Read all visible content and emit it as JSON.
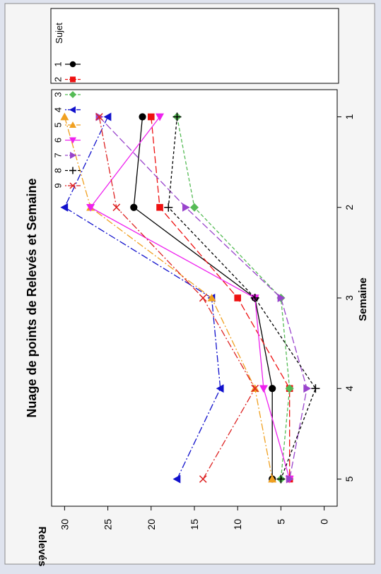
{
  "chart_data": {
    "type": "line",
    "title": "Nuage de points de Relevés et Semaine",
    "xlabel": "Semaine",
    "ylabel": "Relevés",
    "x": [
      1,
      2,
      3,
      4,
      5
    ],
    "xlim": [
      0.7,
      5.3
    ],
    "ylim": [
      -1.5,
      31.5
    ],
    "x_ticks": [
      1,
      2,
      3,
      4,
      5
    ],
    "y_ticks": [
      0,
      5,
      10,
      15,
      20,
      25,
      30
    ],
    "orientation": "rotated-90-ccw",
    "grid": false,
    "legend_title": "Sujet",
    "legend_position": "top-right",
    "series": [
      {
        "name": "1",
        "values": [
          21,
          22,
          8,
          6,
          6
        ],
        "color": "#000000",
        "marker": "circle",
        "dash": "solid"
      },
      {
        "name": "2",
        "values": [
          20,
          19,
          10,
          4,
          4
        ],
        "color": "#ee1111",
        "marker": "square",
        "dash": "long-dash"
      },
      {
        "name": "3",
        "values": [
          17,
          15,
          5,
          4,
          5
        ],
        "color": "#55bb55",
        "marker": "diamond",
        "dash": "dash"
      },
      {
        "name": "4",
        "values": [
          25,
          30,
          13,
          12,
          17
        ],
        "color": "#1111cc",
        "marker": "triangle-left",
        "dash": "dash-dot"
      },
      {
        "name": "5",
        "values": [
          30,
          27,
          13,
          8,
          6
        ],
        "color": "#f0a020",
        "marker": "triangle-up",
        "dash": "dash-dot"
      },
      {
        "name": "6",
        "values": [
          19,
          27,
          8,
          7,
          4
        ],
        "color": "#ee22ee",
        "marker": "triangle-down",
        "dash": "solid"
      },
      {
        "name": "7",
        "values": [
          26,
          16,
          5,
          2,
          4
        ],
        "color": "#9944cc",
        "marker": "triangle-right",
        "dash": "long-dash"
      },
      {
        "name": "8",
        "values": [
          17,
          18,
          8,
          1,
          5
        ],
        "color": "#000000",
        "marker": "plus",
        "dash": "short-dash"
      },
      {
        "name": "9",
        "values": [
          26,
          24,
          14,
          8,
          14
        ],
        "color": "#dd2222",
        "marker": "x",
        "dash": "dash-dot"
      }
    ]
  }
}
